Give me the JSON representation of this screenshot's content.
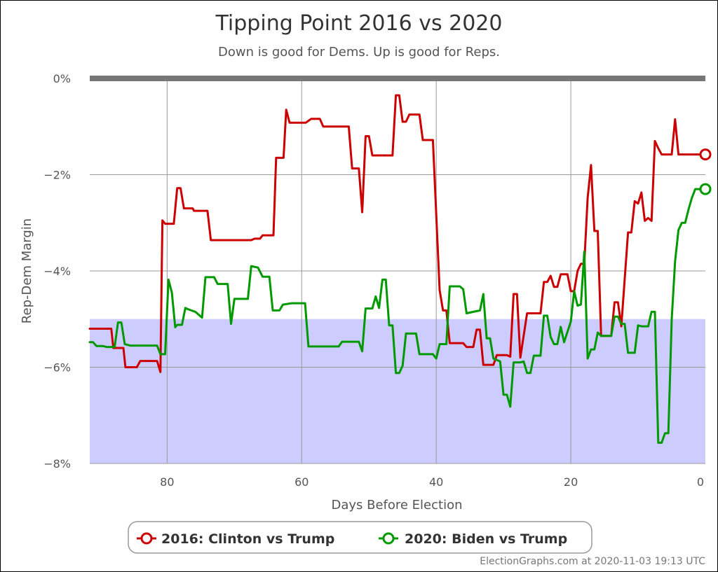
{
  "chart_data": {
    "type": "line",
    "title": "Tipping Point 2016 vs 2020",
    "subtitle": "Down is good for Dems. Up is good for Reps.",
    "xlabel": "Days Before Election",
    "ylabel": "Rep-Dem Margin",
    "xlim": [
      91.5,
      0
    ],
    "ylim": [
      -8,
      0
    ],
    "x_ticks": [
      80,
      60,
      40,
      20,
      0
    ],
    "x_tick_labels": [
      "80",
      "60",
      "40",
      "20",
      "0"
    ],
    "y_ticks": [
      0,
      -2,
      -4,
      -6,
      -8
    ],
    "y_tick_labels": [
      "0%",
      "−2%",
      "−4%",
      "−6%",
      "−8%"
    ],
    "grid": true,
    "legend_position": "bottom",
    "band": {
      "from": -8,
      "to": -5,
      "color": "#ccccff"
    },
    "zero_line_color": "#777777",
    "credit": "ElectionGraphs.com at 2020-11-03 19:13 UTC",
    "series": [
      {
        "name": "2016: Clinton vs Trump",
        "color": "#cc0000",
        "points": [
          [
            91.5,
            -5.2
          ],
          [
            88.3,
            -5.2
          ],
          [
            88,
            -5.6
          ],
          [
            86.5,
            -5.6
          ],
          [
            86.2,
            -6.0
          ],
          [
            84.5,
            -6.0
          ],
          [
            84,
            -5.87
          ],
          [
            81.5,
            -5.87
          ],
          [
            81,
            -6.1
          ],
          [
            80.7,
            -2.95
          ],
          [
            80.3,
            -3.02
          ],
          [
            79,
            -3.02
          ],
          [
            78.5,
            -2.28
          ],
          [
            78,
            -2.28
          ],
          [
            77.5,
            -2.7
          ],
          [
            76.2,
            -2.7
          ],
          [
            76,
            -2.75
          ],
          [
            74,
            -2.75
          ],
          [
            73.5,
            -3.36
          ],
          [
            67.5,
            -3.36
          ],
          [
            67,
            -3.33
          ],
          [
            66.2,
            -3.33
          ],
          [
            65.8,
            -3.26
          ],
          [
            64.2,
            -3.26
          ],
          [
            63.8,
            -1.65
          ],
          [
            62.7,
            -1.65
          ],
          [
            62.3,
            -0.65
          ],
          [
            61.8,
            -0.92
          ],
          [
            59.4,
            -0.92
          ],
          [
            58.6,
            -0.84
          ],
          [
            57.3,
            -0.84
          ],
          [
            56.8,
            -1.0
          ],
          [
            53,
            -1.0
          ],
          [
            52.5,
            -1.87
          ],
          [
            51.5,
            -1.87
          ],
          [
            51,
            -2.78
          ],
          [
            50.5,
            -1.2
          ],
          [
            50,
            -1.2
          ],
          [
            49.5,
            -1.6
          ],
          [
            46.5,
            -1.6
          ],
          [
            46,
            -0.35
          ],
          [
            45.5,
            -0.35
          ],
          [
            45,
            -0.9
          ],
          [
            44.5,
            -0.9
          ],
          [
            44,
            -0.75
          ],
          [
            42.5,
            -0.75
          ],
          [
            42,
            -1.28
          ],
          [
            40.5,
            -1.28
          ],
          [
            39.5,
            -4.4
          ],
          [
            39,
            -4.82
          ],
          [
            38.5,
            -4.82
          ],
          [
            38,
            -5.5
          ],
          [
            36,
            -5.5
          ],
          [
            35.5,
            -5.58
          ],
          [
            34.5,
            -5.58
          ],
          [
            34,
            -5.22
          ],
          [
            33.5,
            -5.22
          ],
          [
            33,
            -5.95
          ],
          [
            31.5,
            -5.95
          ],
          [
            31,
            -5.75
          ],
          [
            29.5,
            -5.75
          ],
          [
            29,
            -5.78
          ],
          [
            28.5,
            -4.48
          ],
          [
            28,
            -4.48
          ],
          [
            27.5,
            -5.8
          ],
          [
            26.5,
            -4.88
          ],
          [
            24.5,
            -4.88
          ],
          [
            24,
            -4.23
          ],
          [
            23.5,
            -4.23
          ],
          [
            23,
            -4.1
          ],
          [
            22.5,
            -4.33
          ],
          [
            22,
            -4.33
          ],
          [
            21.5,
            -4.07
          ],
          [
            20.5,
            -4.07
          ],
          [
            20,
            -4.42
          ],
          [
            19.5,
            -4.42
          ],
          [
            19,
            -4.0
          ],
          [
            18.5,
            -3.85
          ],
          [
            18,
            -3.85
          ],
          [
            17.5,
            -2.48
          ],
          [
            17,
            -1.8
          ],
          [
            16.5,
            -3.17
          ],
          [
            16,
            -3.17
          ],
          [
            15.5,
            -5.35
          ],
          [
            14,
            -5.35
          ],
          [
            13.5,
            -4.65
          ],
          [
            13,
            -4.65
          ],
          [
            12.5,
            -5.15
          ],
          [
            11.5,
            -3.2
          ],
          [
            11,
            -3.2
          ],
          [
            10.5,
            -2.55
          ],
          [
            10,
            -2.6
          ],
          [
            9.5,
            -2.37
          ],
          [
            9,
            -2.96
          ],
          [
            8.5,
            -2.9
          ],
          [
            8,
            -2.96
          ],
          [
            7.5,
            -1.3
          ],
          [
            7,
            -1.45
          ],
          [
            6.5,
            -1.58
          ],
          [
            5,
            -1.58
          ],
          [
            4.5,
            -0.85
          ],
          [
            4,
            -1.58
          ],
          [
            0,
            -1.58
          ]
        ]
      },
      {
        "name": "2020: Biden vs Trump",
        "color": "#009900",
        "points": [
          [
            91.5,
            -5.48
          ],
          [
            91,
            -5.48
          ],
          [
            90.5,
            -5.56
          ],
          [
            89.5,
            -5.56
          ],
          [
            89,
            -5.58
          ],
          [
            87.8,
            -5.58
          ],
          [
            87.3,
            -5.07
          ],
          [
            86.8,
            -5.07
          ],
          [
            86.3,
            -5.52
          ],
          [
            85.5,
            -5.55
          ],
          [
            84,
            -5.55
          ],
          [
            82,
            -5.55
          ],
          [
            81.5,
            -5.55
          ],
          [
            81,
            -5.73
          ],
          [
            80.3,
            -5.73
          ],
          [
            79.8,
            -4.18
          ],
          [
            79.3,
            -4.45
          ],
          [
            78.8,
            -5.17
          ],
          [
            78.5,
            -5.12
          ],
          [
            77.8,
            -5.12
          ],
          [
            77.3,
            -4.77
          ],
          [
            76.8,
            -4.8
          ],
          [
            75.8,
            -4.85
          ],
          [
            74.8,
            -4.97
          ],
          [
            74.3,
            -4.13
          ],
          [
            73,
            -4.13
          ],
          [
            72.5,
            -4.27
          ],
          [
            71,
            -4.27
          ],
          [
            70.5,
            -5.1
          ],
          [
            70,
            -4.58
          ],
          [
            68,
            -4.58
          ],
          [
            67.5,
            -3.9
          ],
          [
            66.5,
            -3.93
          ],
          [
            65.8,
            -4.12
          ],
          [
            64.8,
            -4.12
          ],
          [
            64.3,
            -4.82
          ],
          [
            63.3,
            -4.82
          ],
          [
            62.8,
            -4.7
          ],
          [
            61.5,
            -4.67
          ],
          [
            59.5,
            -4.67
          ],
          [
            59,
            -5.57
          ],
          [
            54.5,
            -5.57
          ],
          [
            54,
            -5.47
          ],
          [
            51.5,
            -5.47
          ],
          [
            51,
            -5.67
          ],
          [
            50.5,
            -4.78
          ],
          [
            49.5,
            -4.78
          ],
          [
            49,
            -4.53
          ],
          [
            48.5,
            -4.77
          ],
          [
            48,
            -4.18
          ],
          [
            47.5,
            -4.18
          ],
          [
            47,
            -5.13
          ],
          [
            46.5,
            -5.13
          ],
          [
            46,
            -6.12
          ],
          [
            45.5,
            -6.12
          ],
          [
            45,
            -5.97
          ],
          [
            44.5,
            -5.3
          ],
          [
            43,
            -5.3
          ],
          [
            42.5,
            -5.73
          ],
          [
            40.5,
            -5.73
          ],
          [
            40,
            -5.82
          ],
          [
            39.5,
            -5.52
          ],
          [
            38.5,
            -5.52
          ],
          [
            38,
            -4.32
          ],
          [
            36.5,
            -4.32
          ],
          [
            36,
            -4.38
          ],
          [
            35.5,
            -4.88
          ],
          [
            34.5,
            -4.85
          ],
          [
            33.5,
            -4.82
          ],
          [
            33,
            -4.48
          ],
          [
            32.5,
            -5.4
          ],
          [
            32,
            -5.4
          ],
          [
            31.5,
            -5.82
          ],
          [
            30.5,
            -5.88
          ],
          [
            30,
            -6.57
          ],
          [
            29.5,
            -6.57
          ],
          [
            29,
            -6.82
          ],
          [
            28.5,
            -5.9
          ],
          [
            27.5,
            -5.9
          ],
          [
            27,
            -5.88
          ],
          [
            26.5,
            -6.12
          ],
          [
            26,
            -6.12
          ],
          [
            25.5,
            -5.76
          ],
          [
            24.5,
            -5.76
          ],
          [
            24,
            -4.93
          ],
          [
            23.5,
            -4.93
          ],
          [
            23,
            -5.37
          ],
          [
            22.5,
            -5.52
          ],
          [
            22,
            -5.52
          ],
          [
            21.5,
            -5.16
          ],
          [
            21,
            -5.48
          ],
          [
            20,
            -5.05
          ],
          [
            19.5,
            -4.42
          ],
          [
            19,
            -4.72
          ],
          [
            18.5,
            -4.7
          ],
          [
            18,
            -3.6
          ],
          [
            17.5,
            -5.82
          ],
          [
            17,
            -5.63
          ],
          [
            16.5,
            -5.63
          ],
          [
            16,
            -5.28
          ],
          [
            15.5,
            -5.35
          ],
          [
            14,
            -5.35
          ],
          [
            13.5,
            -4.95
          ],
          [
            13,
            -4.95
          ],
          [
            12.5,
            -5.1
          ],
          [
            12,
            -5.1
          ],
          [
            11.5,
            -5.7
          ],
          [
            10.5,
            -5.7
          ],
          [
            10,
            -5.13
          ],
          [
            9.5,
            -5.15
          ],
          [
            8.5,
            -5.15
          ],
          [
            8,
            -4.85
          ],
          [
            7.5,
            -4.85
          ],
          [
            7,
            -7.57
          ],
          [
            6.5,
            -7.57
          ],
          [
            6,
            -7.37
          ],
          [
            5.5,
            -7.37
          ],
          [
            5,
            -5.0
          ],
          [
            4.5,
            -3.8
          ],
          [
            4,
            -3.15
          ],
          [
            3.5,
            -3.0
          ],
          [
            3,
            -3.0
          ],
          [
            2.5,
            -2.72
          ],
          [
            2,
            -2.48
          ],
          [
            1.5,
            -2.3
          ],
          [
            0,
            -2.3
          ]
        ]
      }
    ]
  }
}
